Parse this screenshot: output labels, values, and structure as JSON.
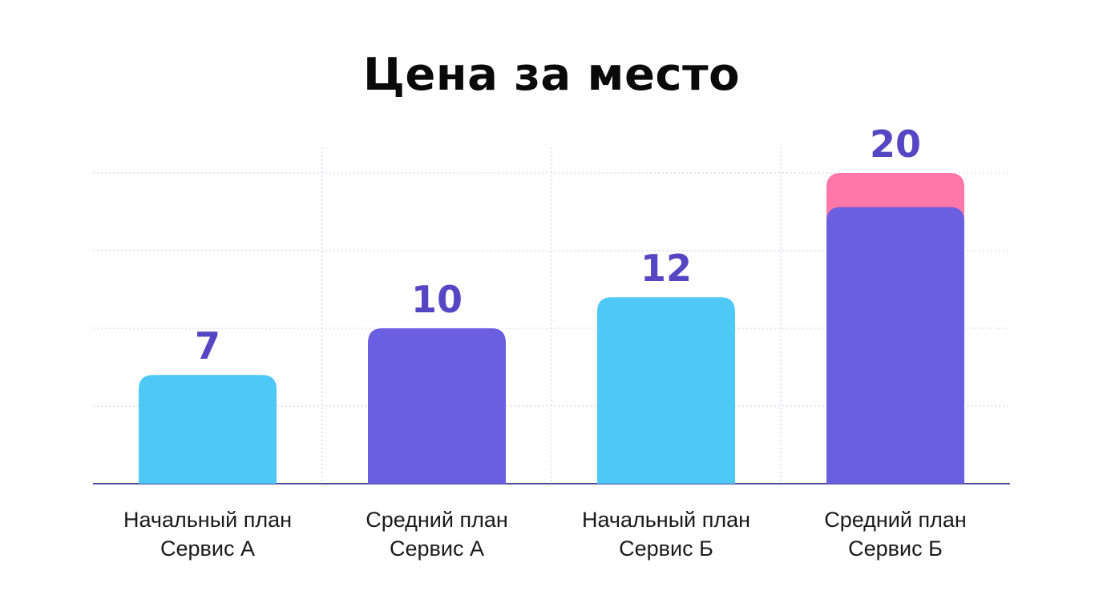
{
  "chart_data": {
    "type": "bar",
    "title": "Цена за место",
    "xlabel": "",
    "ylabel": "",
    "categories": [
      [
        "Начальный план",
        "Сервис А"
      ],
      [
        "Средний план",
        "Сервис А"
      ],
      [
        "Начальный план",
        "Сервис Б"
      ],
      [
        "Средний план",
        "Сервис Б"
      ]
    ],
    "values": [
      7,
      10,
      12,
      20
    ],
    "value_labels": [
      "7",
      "10",
      "12",
      "20"
    ],
    "stacked_top": [
      0,
      0,
      0,
      2.2
    ],
    "ylim": [
      0,
      20
    ],
    "grid": true,
    "colors": {
      "bars": [
        "#4ec8f4",
        "#6a5ee1",
        "#4ec8f4",
        "#6a5ee1"
      ],
      "stack_top": "#ff77a8",
      "value_text": "#5646c4",
      "grid": "#dcdcf0",
      "baseline": "#4b4a9a"
    }
  }
}
